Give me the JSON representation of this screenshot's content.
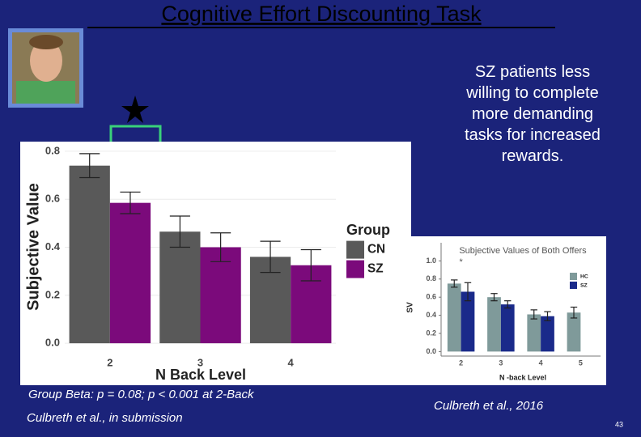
{
  "title": "Cognitive Effort Discounting Task",
  "note": "SZ patients less willing to complete more demanding tasks for increased rewards.",
  "caption_left": "Group Beta: p = 0.08; p < 0.001 at 2-Back",
  "citation_left": "Culbreth et al., in submission",
  "citation_right": "Culbreth et al., 2016",
  "page_number": "43",
  "chart_data": [
    {
      "type": "bar",
      "xlabel": "N Back Level",
      "ylabel": "Subjective Value",
      "legend_title": "Group",
      "categories": [
        "2",
        "3",
        "4"
      ],
      "series": [
        {
          "name": "CN",
          "color": "#595959",
          "values": [
            0.74,
            0.465,
            0.36
          ],
          "errors": [
            0.05,
            0.065,
            0.065
          ]
        },
        {
          "name": "SZ",
          "color": "#7b0a7b",
          "values": [
            0.585,
            0.4,
            0.325
          ],
          "errors": [
            0.045,
            0.06,
            0.065
          ]
        }
      ],
      "ylim": [
        -0.04,
        0.83
      ],
      "yticks": [
        {
          "value": 0,
          "label": "0.0"
        },
        0.2,
        0.4,
        0.6,
        0.8
      ],
      "grid": true,
      "legend": "right"
    },
    {
      "type": "bar",
      "title": "Subjective Values of Both Offers",
      "xlabel": "N -back Level",
      "ylabel": "SV",
      "annotation": "*",
      "categories": [
        "2",
        "3",
        "4",
        "5"
      ],
      "series": [
        {
          "name": "HC",
          "color": "#7f9a9a",
          "values": [
            0.75,
            0.6,
            0.41,
            0.43
          ],
          "errors": [
            0.04,
            0.04,
            0.05,
            0.06
          ]
        },
        {
          "name": "SZ",
          "color": "#1a2a8a",
          "values": [
            0.66,
            0.52,
            0.39,
            null
          ],
          "errors": [
            0.1,
            0.04,
            0.05,
            null
          ]
        }
      ],
      "ylim": [
        -0.05,
        1.2
      ],
      "yticks": [
        {
          "value": 0,
          "label": "0.0"
        },
        0.2,
        0.4,
        0.6,
        0.8,
        {
          "value": 1,
          "label": "1.0"
        }
      ],
      "grid": false,
      "legend": "top-right"
    }
  ]
}
